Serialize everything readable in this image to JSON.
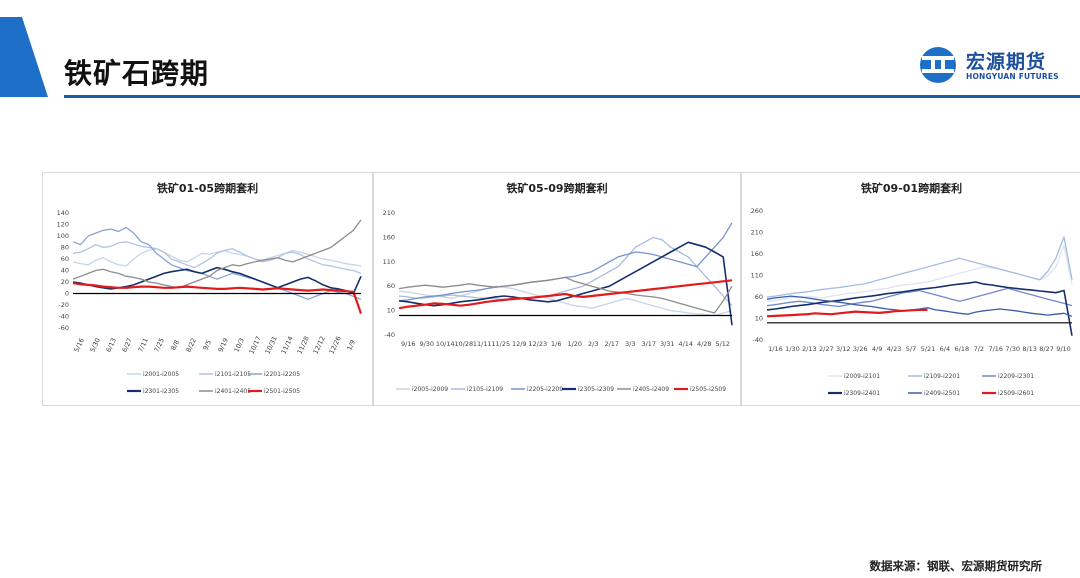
{
  "page": {
    "title": "铁矿石跨期",
    "logo_cn": "宏源期货",
    "logo_en": "HONGYUAN FUTURES",
    "source": "数据来源：钢联、宏源期货研究所",
    "colors": {
      "header_blue": "#1e5aa8",
      "accent_blue": "#1e6fc8"
    }
  },
  "chart_data": [
    {
      "type": "line",
      "title": "铁矿01-05跨期套利",
      "ylim": [
        -60,
        140
      ],
      "yticks": [
        140,
        120,
        100,
        80,
        60,
        40,
        20,
        0,
        -20,
        -40,
        -60
      ],
      "xticks": [
        "5/16",
        "5/30",
        "6/13",
        "6/27",
        "7/11",
        "7/25",
        "8/8",
        "8/22",
        "9/5",
        "9/19",
        "10/3",
        "10/17",
        "10/31",
        "11/14",
        "11/28",
        "12/12",
        "12/26",
        "1/9"
      ],
      "series": [
        {
          "name": "i2001-i2005",
          "color": "#c5d5ea",
          "values": [
            55,
            52,
            50,
            58,
            62,
            55,
            50,
            48,
            60,
            70,
            75,
            78,
            72,
            65,
            58,
            55,
            62,
            70,
            68,
            72,
            75,
            70,
            68,
            65,
            60,
            58,
            62,
            66,
            70,
            75,
            72,
            68,
            64,
            60,
            58,
            55,
            52,
            50,
            48
          ]
        },
        {
          "name": "i2101-i2105",
          "color": "#b0c4e4",
          "values": [
            70,
            72,
            78,
            85,
            80,
            82,
            88,
            90,
            86,
            82,
            80,
            78,
            72,
            60,
            55,
            50,
            45,
            52,
            60,
            70,
            75,
            78,
            72,
            65,
            60,
            55,
            58,
            62,
            70,
            72,
            68,
            60,
            55,
            50,
            48,
            45,
            42,
            40,
            35
          ]
        },
        {
          "name": "i2201-i2205",
          "color": "#8aa3d6",
          "values": [
            90,
            85,
            100,
            105,
            110,
            112,
            108,
            115,
            105,
            90,
            85,
            70,
            60,
            50,
            45,
            40,
            38,
            35,
            30,
            25,
            30,
            35,
            32,
            28,
            25,
            20,
            15,
            10,
            5,
            0,
            -5,
            -10,
            -5,
            0,
            5,
            2,
            0,
            -5,
            -10
          ]
        },
        {
          "name": "i2301-i2305",
          "color": "#152f6e",
          "values": [
            20,
            18,
            15,
            12,
            10,
            8,
            10,
            12,
            15,
            20,
            25,
            30,
            35,
            38,
            40,
            42,
            38,
            35,
            40,
            45,
            42,
            38,
            35,
            30,
            25,
            20,
            15,
            10,
            15,
            20,
            25,
            28,
            22,
            15,
            10,
            8,
            5,
            0,
            30
          ]
        },
        {
          "name": "i2401-i2405",
          "color": "#8c8c8c",
          "values": [
            25,
            30,
            35,
            40,
            42,
            38,
            35,
            30,
            28,
            25,
            20,
            18,
            15,
            12,
            10,
            15,
            20,
            25,
            30,
            40,
            45,
            50,
            48,
            52,
            55,
            58,
            60,
            62,
            58,
            55,
            60,
            65,
            70,
            75,
            80,
            90,
            100,
            110,
            128
          ]
        },
        {
          "name": "i2501-i2505",
          "color": "#e31a1c",
          "values": [
            18,
            16,
            15,
            14,
            12,
            11,
            10,
            10,
            11,
            12,
            12,
            11,
            10,
            10,
            11,
            12,
            11,
            10,
            9,
            8,
            8,
            9,
            10,
            9,
            8,
            7,
            8,
            9,
            8,
            7,
            6,
            5,
            6,
            7,
            6,
            5,
            4,
            3,
            -35
          ]
        }
      ]
    },
    {
      "type": "line",
      "title": "铁矿05-09跨期套利",
      "ylim": [
        -40,
        210
      ],
      "yticks": [
        210,
        160,
        110,
        60,
        10,
        -40
      ],
      "xticks": [
        "9/16",
        "9/30",
        "10/14",
        "10/28",
        "11/11",
        "11/25",
        "12/9",
        "12/23",
        "1/6",
        "1/20",
        "2/3",
        "2/17",
        "3/3",
        "3/17",
        "3/31",
        "4/14",
        "4/28",
        "5/12"
      ],
      "series": [
        {
          "name": "i2005-i2009",
          "color": "#c5d5ea",
          "values": [
            50,
            48,
            45,
            42,
            40,
            38,
            35,
            40,
            45,
            50,
            55,
            60,
            58,
            55,
            50,
            45,
            40,
            35,
            30,
            25,
            20,
            18,
            15,
            20,
            25,
            30,
            35,
            30,
            25,
            20,
            15,
            10,
            8,
            5,
            3,
            2,
            0,
            5,
            10
          ]
        },
        {
          "name": "i2105-i2109",
          "color": "#a6bce0",
          "values": [
            40,
            38,
            35,
            36,
            38,
            40,
            42,
            40,
            38,
            36,
            35,
            34,
            33,
            32,
            34,
            36,
            38,
            40,
            45,
            50,
            55,
            60,
            70,
            80,
            90,
            100,
            120,
            140,
            150,
            160,
            155,
            140,
            130,
            120,
            100,
            80,
            60,
            40,
            20
          ]
        },
        {
          "name": "i2205-i2209",
          "color": "#7892cc",
          "values": [
            30,
            32,
            35,
            38,
            40,
            42,
            45,
            48,
            50,
            52,
            55,
            58,
            60,
            62,
            65,
            68,
            70,
            72,
            75,
            78,
            80,
            85,
            90,
            100,
            110,
            120,
            125,
            130,
            128,
            125,
            120,
            115,
            110,
            105,
            100,
            120,
            140,
            160,
            190
          ]
        },
        {
          "name": "i2305-i2309",
          "color": "#152f6e",
          "values": [
            30,
            28,
            25,
            22,
            20,
            22,
            25,
            28,
            30,
            32,
            35,
            38,
            40,
            38,
            35,
            32,
            30,
            28,
            30,
            35,
            40,
            45,
            50,
            55,
            60,
            70,
            80,
            90,
            100,
            110,
            120,
            130,
            140,
            150,
            145,
            140,
            130,
            120,
            -20
          ]
        },
        {
          "name": "i2405-i2409",
          "color": "#8c8c8c",
          "values": [
            55,
            58,
            60,
            62,
            60,
            58,
            60,
            62,
            65,
            62,
            60,
            58,
            60,
            62,
            65,
            68,
            70,
            72,
            75,
            78,
            70,
            65,
            60,
            55,
            50,
            48,
            45,
            42,
            40,
            38,
            35,
            30,
            25,
            20,
            15,
            10,
            5,
            30,
            60
          ]
        },
        {
          "name": "i2505-i2509",
          "color": "#e31a1c",
          "values": [
            15,
            18,
            20,
            22,
            25,
            24,
            22,
            20,
            22,
            25,
            28,
            30,
            32,
            34,
            35,
            36,
            38,
            40,
            42,
            44,
            40,
            38,
            40,
            42,
            44,
            46,
            48,
            50,
            52,
            54,
            56,
            58,
            60,
            62,
            64,
            66,
            68,
            70,
            72
          ]
        }
      ]
    },
    {
      "type": "line",
      "title": "铁矿09-01跨期套利",
      "ylim": [
        -40,
        260
      ],
      "yticks": [
        260,
        210,
        160,
        110,
        60,
        10,
        -40
      ],
      "xticks": [
        "1/16",
        "1/30",
        "2/13",
        "2/27",
        "3/12",
        "3/26",
        "4/9",
        "4/23",
        "5/7",
        "5/21",
        "6/4",
        "6/18",
        "7/2",
        "7/16",
        "7/30",
        "8/13",
        "8/27",
        "9/10"
      ],
      "series": [
        {
          "name": "i2009-i2101",
          "color": "#dce5f2",
          "values": [
            50,
            52,
            55,
            58,
            60,
            62,
            60,
            58,
            62,
            65,
            68,
            70,
            72,
            75,
            78,
            80,
            85,
            88,
            90,
            92,
            95,
            100,
            105,
            110,
            115,
            120,
            125,
            130,
            128,
            125,
            120,
            115,
            110,
            105,
            100,
            110,
            130,
            180,
            90
          ]
        },
        {
          "name": "i2109-i2201",
          "color": "#a6bce0",
          "values": [
            60,
            62,
            65,
            68,
            70,
            72,
            75,
            78,
            80,
            82,
            85,
            88,
            90,
            95,
            100,
            105,
            110,
            115,
            120,
            125,
            130,
            135,
            140,
            145,
            150,
            145,
            140,
            135,
            130,
            125,
            120,
            115,
            110,
            105,
            100,
            120,
            150,
            200,
            100
          ]
        },
        {
          "name": "i2209-i2301",
          "color": "#6f8bc9",
          "values": [
            40,
            42,
            45,
            48,
            50,
            48,
            45,
            42,
            40,
            38,
            42,
            45,
            48,
            50,
            55,
            60,
            65,
            70,
            72,
            75,
            70,
            65,
            60,
            55,
            50,
            55,
            60,
            65,
            70,
            75,
            80,
            75,
            70,
            65,
            60,
            55,
            50,
            45,
            40
          ]
        },
        {
          "name": "i2309-i2401",
          "color": "#152f6e",
          "values": [
            30,
            32,
            35,
            38,
            40,
            42,
            45,
            48,
            50,
            52,
            55,
            58,
            60,
            62,
            65,
            68,
            70,
            72,
            75,
            78,
            80,
            82,
            85,
            88,
            90,
            92,
            95,
            90,
            88,
            85,
            82,
            80,
            78,
            76,
            74,
            72,
            70,
            75,
            -30
          ]
        },
        {
          "name": "i2409-i2501",
          "color": "#3b5ca8",
          "values": [
            55,
            58,
            60,
            62,
            60,
            58,
            55,
            52,
            50,
            48,
            45,
            42,
            40,
            38,
            35,
            32,
            30,
            28,
            30,
            32,
            35,
            30,
            28,
            25,
            22,
            20,
            25,
            28,
            30,
            32,
            30,
            28,
            25,
            22,
            20,
            18,
            20,
            22,
            15
          ]
        },
        {
          "name": "i2509-i2601",
          "color": "#e31a1c",
          "values": [
            15,
            16,
            17,
            18,
            19,
            20,
            22,
            21,
            20,
            22,
            24,
            26,
            25,
            24,
            23,
            25,
            27,
            28,
            29,
            30,
            30
          ]
        }
      ]
    }
  ]
}
